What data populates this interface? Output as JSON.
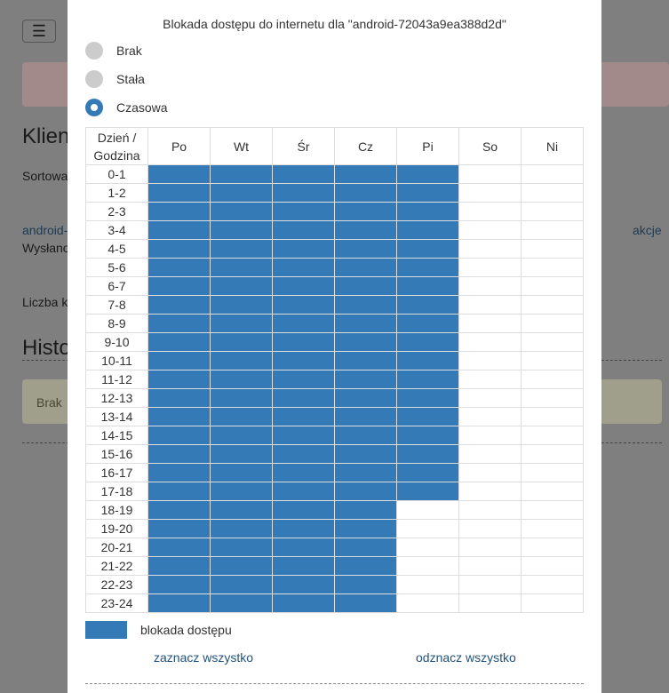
{
  "background": {
    "menu_button": "☰",
    "heading1": "Klien",
    "sort_text": "Sortowa",
    "client_link": "android-",
    "sent_text": "Wysłano",
    "actions_link": "akcje",
    "count_text": "Liczba k",
    "heading2": "Histo",
    "alert_text": "Brak"
  },
  "modal": {
    "title": "Blokada dostępu do internetu dla \"android-72043a9ea388d2d\"",
    "options": [
      {
        "label": "Brak",
        "selected": false
      },
      {
        "label": "Stała",
        "selected": false
      },
      {
        "label": "Czasowa",
        "selected": true
      }
    ],
    "table": {
      "corner": "Dzień / Godzina",
      "days": [
        "Po",
        "Wt",
        "Śr",
        "Cz",
        "Pi",
        "So",
        "Ni"
      ],
      "rows": [
        {
          "hours": "0-1",
          "blocked": [
            1,
            1,
            1,
            1,
            1,
            0,
            0
          ]
        },
        {
          "hours": "1-2",
          "blocked": [
            1,
            1,
            1,
            1,
            1,
            0,
            0
          ]
        },
        {
          "hours": "2-3",
          "blocked": [
            1,
            1,
            1,
            1,
            1,
            0,
            0
          ]
        },
        {
          "hours": "3-4",
          "blocked": [
            1,
            1,
            1,
            1,
            1,
            0,
            0
          ]
        },
        {
          "hours": "4-5",
          "blocked": [
            1,
            1,
            1,
            1,
            1,
            0,
            0
          ]
        },
        {
          "hours": "5-6",
          "blocked": [
            1,
            1,
            1,
            1,
            1,
            0,
            0
          ]
        },
        {
          "hours": "6-7",
          "blocked": [
            1,
            1,
            1,
            1,
            1,
            0,
            0
          ]
        },
        {
          "hours": "7-8",
          "blocked": [
            1,
            1,
            1,
            1,
            1,
            0,
            0
          ]
        },
        {
          "hours": "8-9",
          "blocked": [
            1,
            1,
            1,
            1,
            1,
            0,
            0
          ]
        },
        {
          "hours": "9-10",
          "blocked": [
            1,
            1,
            1,
            1,
            1,
            0,
            0
          ]
        },
        {
          "hours": "10-11",
          "blocked": [
            1,
            1,
            1,
            1,
            1,
            0,
            0
          ]
        },
        {
          "hours": "11-12",
          "blocked": [
            1,
            1,
            1,
            1,
            1,
            0,
            0
          ]
        },
        {
          "hours": "12-13",
          "blocked": [
            1,
            1,
            1,
            1,
            1,
            0,
            0
          ]
        },
        {
          "hours": "13-14",
          "blocked": [
            1,
            1,
            1,
            1,
            1,
            0,
            0
          ]
        },
        {
          "hours": "14-15",
          "blocked": [
            1,
            1,
            1,
            1,
            1,
            0,
            0
          ]
        },
        {
          "hours": "15-16",
          "blocked": [
            1,
            1,
            1,
            1,
            1,
            0,
            0
          ]
        },
        {
          "hours": "16-17",
          "blocked": [
            1,
            1,
            1,
            1,
            1,
            0,
            0
          ]
        },
        {
          "hours": "17-18",
          "blocked": [
            1,
            1,
            1,
            1,
            1,
            0,
            0
          ]
        },
        {
          "hours": "18-19",
          "blocked": [
            1,
            1,
            1,
            1,
            0,
            0,
            0
          ]
        },
        {
          "hours": "19-20",
          "blocked": [
            1,
            1,
            1,
            1,
            0,
            0,
            0
          ]
        },
        {
          "hours": "20-21",
          "blocked": [
            1,
            1,
            1,
            1,
            0,
            0,
            0
          ]
        },
        {
          "hours": "21-22",
          "blocked": [
            1,
            1,
            1,
            1,
            0,
            0,
            0
          ]
        },
        {
          "hours": "22-23",
          "blocked": [
            1,
            1,
            1,
            1,
            0,
            0,
            0
          ]
        },
        {
          "hours": "23-24",
          "blocked": [
            1,
            1,
            1,
            1,
            0,
            0,
            0
          ]
        }
      ]
    },
    "legend": "blokada dostępu",
    "select_all": "zaznacz wszystko",
    "deselect_all": "odznacz wszystko"
  }
}
